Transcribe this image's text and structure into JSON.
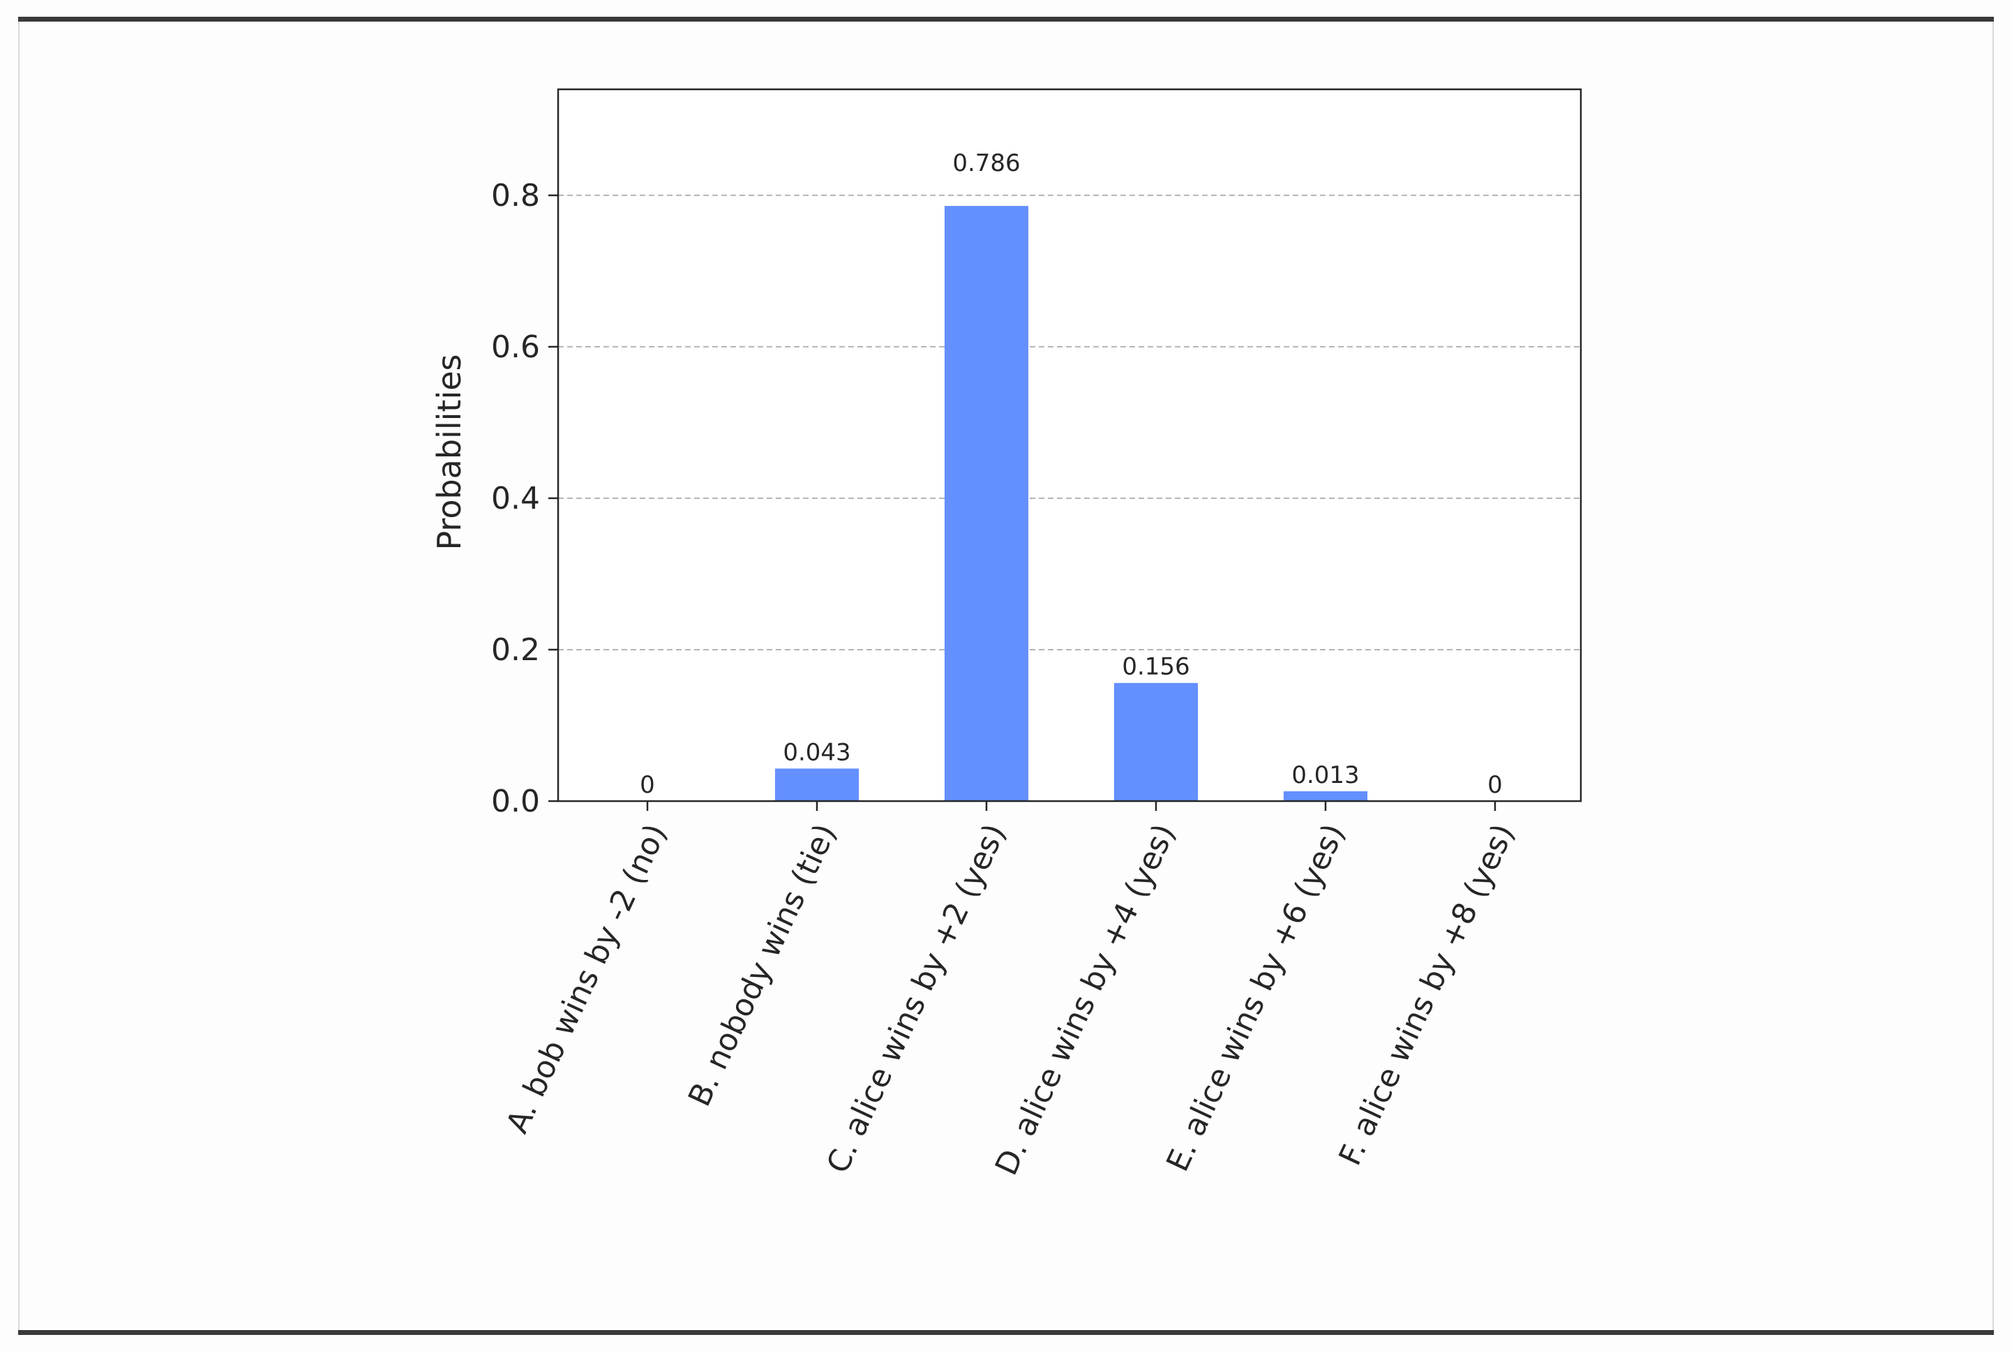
{
  "chart_data": {
    "type": "bar",
    "title": "",
    "xlabel": "",
    "ylabel": "Probabilities",
    "categories": [
      "A. bob wins by -2 (no)",
      "B. nobody wins (tie)",
      "C. alice wins by +2 (yes)",
      "D. alice wins by +4 (yes)",
      "E. alice wins by +6 (yes)",
      "F. alice wins by +8 (yes)"
    ],
    "values": [
      0,
      0.043,
      0.786,
      0.156,
      0.013,
      0
    ],
    "value_labels": [
      "0",
      "0.043",
      "0.786",
      "0.156",
      "0.013",
      "0"
    ],
    "ylim": [
      0,
      0.94
    ],
    "yticks": [
      0.0,
      0.2,
      0.4,
      0.6,
      0.8
    ],
    "ytick_labels": [
      "0.0",
      "0.2",
      "0.4",
      "0.6",
      "0.8"
    ],
    "grid": "horizontal dashed",
    "bar_color": "#648fff",
    "legend": "none"
  }
}
